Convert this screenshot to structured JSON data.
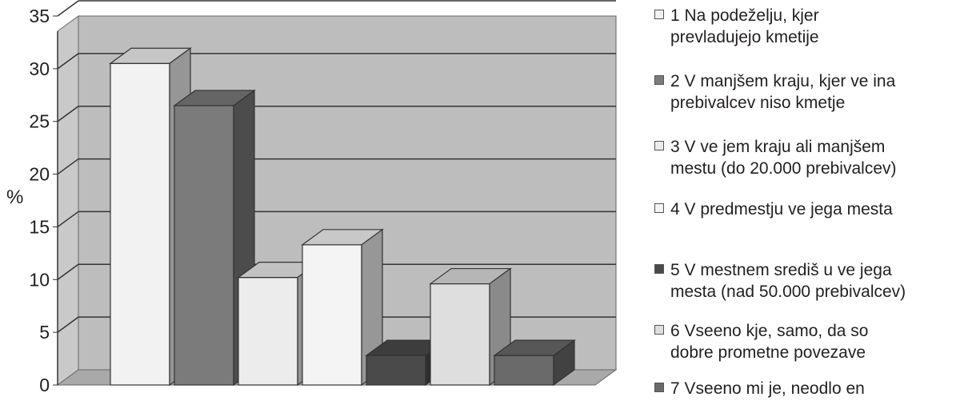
{
  "chart_data": {
    "type": "bar",
    "ylabel": "%",
    "ylim": [
      0,
      35
    ],
    "yticks": [
      "0",
      "5",
      "10",
      "15",
      "20",
      "25",
      "30",
      "35"
    ],
    "grid": true,
    "legend_position": "right",
    "series": [
      {
        "name": "1 Na podeželju, kjer\nprevladujejo kmetije",
        "value": 30.5,
        "color": "#f2f2f2"
      },
      {
        "name": "2 V manjšem kraju, kjer ve  ina\nprebivalcev niso kmetje",
        "value": 26.5,
        "color": "#7b7b7b"
      },
      {
        "name": "3 V ve  jem kraju ali manjšem\nmestu (do 20.000 prebivalcev)",
        "value": 10.2,
        "color": "#ececec"
      },
      {
        "name": "4 V predmestju ve  jega mesta",
        "value": 13.3,
        "color": "#f4f4f4"
      },
      {
        "name": "5 V mestnem središ  u ve  jega\nmesta (nad 50.000 prebivalcev)",
        "value": 2.8,
        "color": "#4a4a4a"
      },
      {
        "name": "6 Vseeno kje, samo, da so\ndobre prometne povezave",
        "value": 9.6,
        "color": "#dedede"
      },
      {
        "name": "7 Vseeno mi je, neodlo  en",
        "value": 2.8,
        "color": "#6a6a6a"
      }
    ]
  }
}
